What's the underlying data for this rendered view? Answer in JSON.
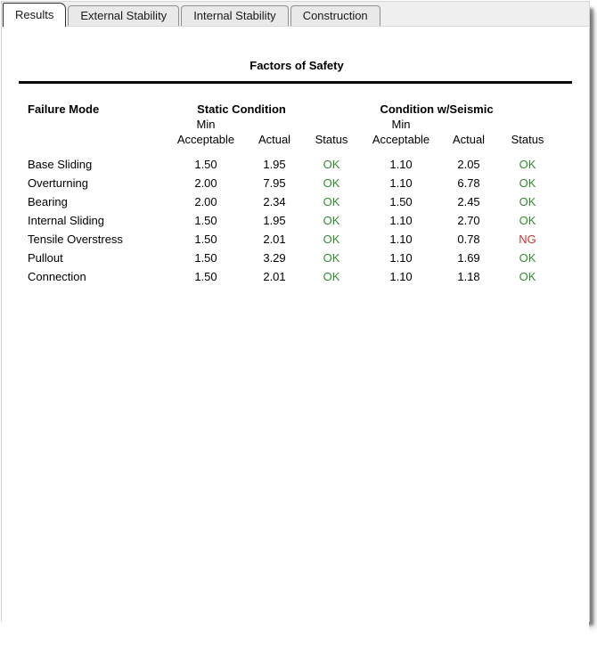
{
  "tabs": [
    {
      "label": "Results",
      "active": true
    },
    {
      "label": "External Stability",
      "active": false
    },
    {
      "label": "Internal Stability",
      "active": false
    },
    {
      "label": "Construction",
      "active": false
    }
  ],
  "title": "Factors of Safety",
  "table": {
    "failure_mode_header": "Failure Mode",
    "groups": [
      {
        "label": "Static Condition"
      },
      {
        "label": "Condition w/Seismic"
      }
    ],
    "subheaders": {
      "min": "Min",
      "acceptable": "Acceptable",
      "actual": "Actual",
      "status": "Status"
    },
    "rows": [
      {
        "mode": "Base Sliding",
        "static_min": "1.50",
        "static_actual": "1.95",
        "static_status": "OK",
        "seismic_min": "1.10",
        "seismic_actual": "2.05",
        "seismic_status": "OK"
      },
      {
        "mode": "Overturning",
        "static_min": "2.00",
        "static_actual": "7.95",
        "static_status": "OK",
        "seismic_min": "1.10",
        "seismic_actual": "6.78",
        "seismic_status": "OK"
      },
      {
        "mode": "Bearing",
        "static_min": "2.00",
        "static_actual": "2.34",
        "static_status": "OK",
        "seismic_min": "1.50",
        "seismic_actual": "2.45",
        "seismic_status": "OK"
      },
      {
        "mode": "Internal Sliding",
        "static_min": "1.50",
        "static_actual": "1.95",
        "static_status": "OK",
        "seismic_min": "1.10",
        "seismic_actual": "2.70",
        "seismic_status": "OK"
      },
      {
        "mode": "Tensile Overstress",
        "static_min": "1.50",
        "static_actual": "2.01",
        "static_status": "OK",
        "seismic_min": "1.10",
        "seismic_actual": "0.78",
        "seismic_status": "NG"
      },
      {
        "mode": "Pullout",
        "static_min": "1.50",
        "static_actual": "3.29",
        "static_status": "OK",
        "seismic_min": "1.10",
        "seismic_actual": "1.69",
        "seismic_status": "OK"
      },
      {
        "mode": "Connection",
        "static_min": "1.50",
        "static_actual": "2.01",
        "static_status": "OK",
        "seismic_min": "1.10",
        "seismic_actual": "1.18",
        "seismic_status": "OK"
      }
    ]
  },
  "colors": {
    "ok": "#338a33",
    "ng": "#cc3333",
    "rule": "#0a0a0a",
    "tab_strip_bg": "#efefef",
    "inactive_tab_bg": "#e9e9e9"
  }
}
